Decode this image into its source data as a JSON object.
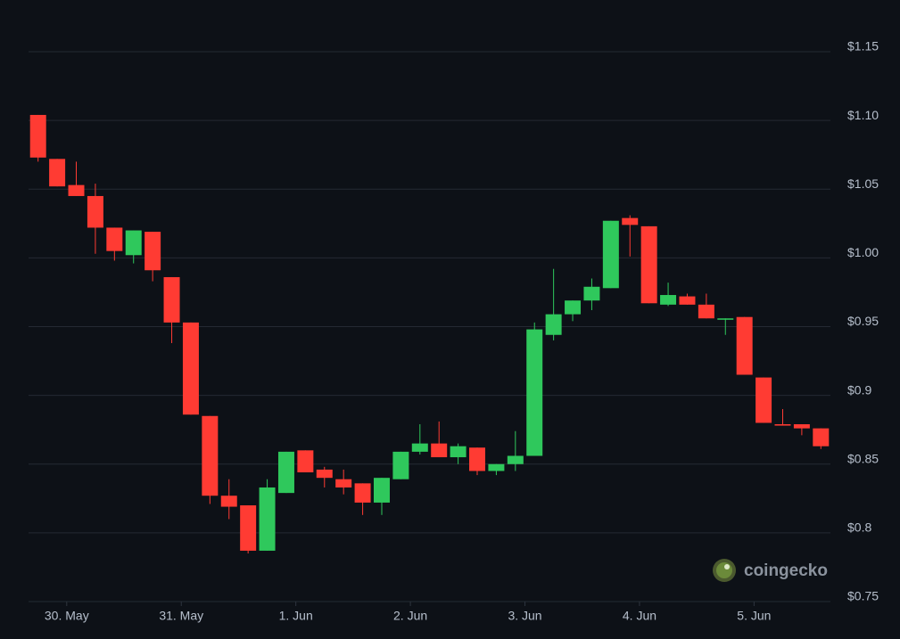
{
  "chart_data": {
    "type": "candlestick",
    "watermark": "coingecko",
    "x": [
      -6,
      -2,
      2,
      6,
      10,
      14,
      18,
      22,
      26,
      30,
      34,
      38,
      42,
      46,
      50,
      54,
      58,
      62,
      66,
      70,
      74,
      78,
      82,
      86,
      90,
      94,
      98,
      102,
      106,
      110,
      114,
      118,
      122,
      126,
      130,
      134,
      138,
      142,
      146,
      150,
      154,
      158
    ],
    "open": [
      1.104,
      1.072,
      1.053,
      1.045,
      1.022,
      1.002,
      1.019,
      0.986,
      0.953,
      0.885,
      0.827,
      0.82,
      0.787,
      0.829,
      0.86,
      0.846,
      0.839,
      0.836,
      0.822,
      0.839,
      0.859,
      0.865,
      0.855,
      0.862,
      0.845,
      0.85,
      0.856,
      0.944,
      0.959,
      0.969,
      0.978,
      1.029,
      1.023,
      0.966,
      0.972,
      0.966,
      0.955,
      0.957,
      0.913,
      0.879,
      0.879,
      0.876
    ],
    "high": [
      1.104,
      1.072,
      1.07,
      1.054,
      1.022,
      1.02,
      1.019,
      0.986,
      0.953,
      0.885,
      0.839,
      0.82,
      0.839,
      0.859,
      0.86,
      0.848,
      0.846,
      0.836,
      0.84,
      0.859,
      0.879,
      0.881,
      0.865,
      0.862,
      0.85,
      0.874,
      0.953,
      0.992,
      0.969,
      0.985,
      1.027,
      1.031,
      1.023,
      0.982,
      0.974,
      0.974,
      0.956,
      0.957,
      0.913,
      0.89,
      0.879,
      0.876
    ],
    "low": [
      1.07,
      1.052,
      1.045,
      1.003,
      0.998,
      0.996,
      0.983,
      0.938,
      0.886,
      0.821,
      0.81,
      0.785,
      0.787,
      0.829,
      0.844,
      0.833,
      0.828,
      0.813,
      0.813,
      0.839,
      0.857,
      0.855,
      0.85,
      0.842,
      0.842,
      0.845,
      0.856,
      0.94,
      0.954,
      0.962,
      0.978,
      1.001,
      0.967,
      0.965,
      0.966,
      0.956,
      0.944,
      0.915,
      0.88,
      0.878,
      0.871,
      0.861
    ],
    "close": [
      1.073,
      1.052,
      1.045,
      1.022,
      1.005,
      1.02,
      0.991,
      0.953,
      0.886,
      0.827,
      0.819,
      0.787,
      0.833,
      0.859,
      0.844,
      0.84,
      0.833,
      0.822,
      0.84,
      0.859,
      0.865,
      0.855,
      0.863,
      0.845,
      0.85,
      0.856,
      0.948,
      0.959,
      0.969,
      0.979,
      1.027,
      1.024,
      0.967,
      0.973,
      0.966,
      0.956,
      0.956,
      0.915,
      0.88,
      0.878,
      0.876,
      0.863
    ],
    "up_color": "#2fc85c",
    "down_color": "#ff3b33",
    "xlim": [
      -8,
      160
    ],
    "xticks": [
      {
        "value": 0,
        "label": "30. May"
      },
      {
        "value": 24,
        "label": "31. May"
      },
      {
        "value": 48,
        "label": "1. Jun"
      },
      {
        "value": 72,
        "label": "2. Jun"
      },
      {
        "value": 96,
        "label": "3. Jun"
      },
      {
        "value": 120,
        "label": "4. Jun"
      },
      {
        "value": 144,
        "label": "5. Jun"
      }
    ],
    "ylim": [
      0.75,
      1.15
    ],
    "yticks": [
      {
        "value": 0.75,
        "label": "$0.75"
      },
      {
        "value": 0.8,
        "label": "$0.8"
      },
      {
        "value": 0.85,
        "label": "$0.85"
      },
      {
        "value": 0.9,
        "label": "$0.9"
      },
      {
        "value": 0.95,
        "label": "$0.95"
      },
      {
        "value": 1.0,
        "label": "$1.00"
      },
      {
        "value": 1.05,
        "label": "$1.05"
      },
      {
        "value": 1.1,
        "label": "$1.10"
      },
      {
        "value": 1.15,
        "label": "$1.15"
      }
    ],
    "grid": true
  }
}
